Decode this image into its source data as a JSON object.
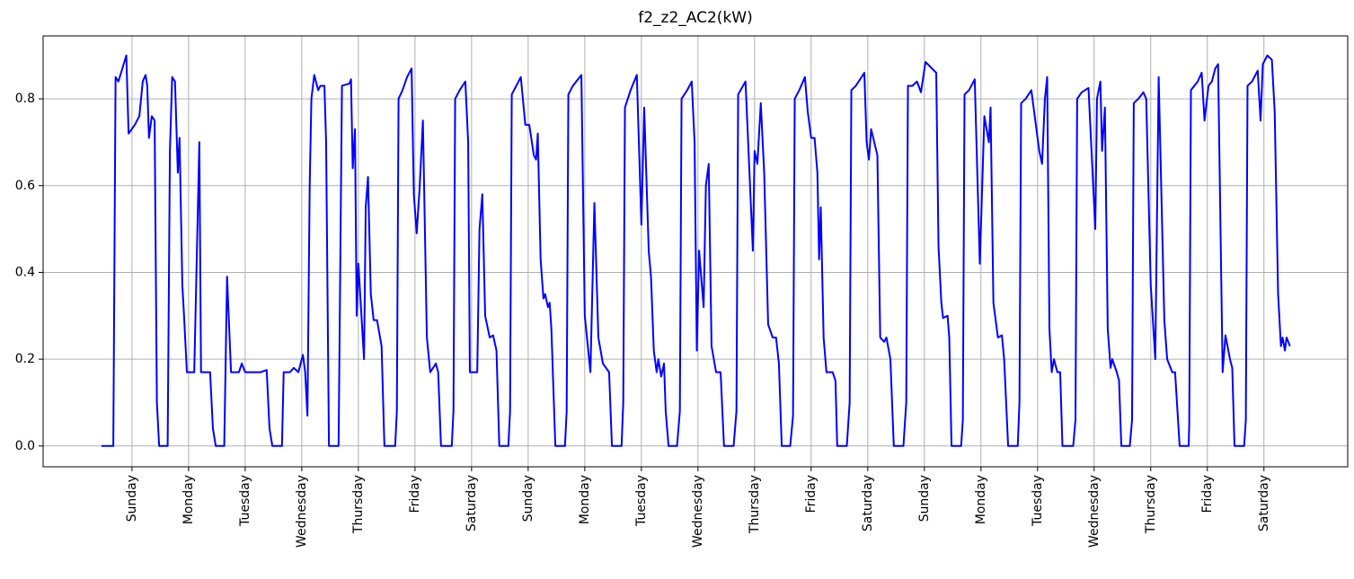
{
  "chart_data": {
    "type": "line",
    "title": "f2_z2_AC2(kW)",
    "color": "#0000ff",
    "grid": true,
    "xlim": [
      -1.57,
      21.48
    ],
    "ylim": [
      -0.048,
      0.945
    ],
    "yticks": [
      {
        "value": 0,
        "label": "0.0"
      },
      0.2,
      0.4,
      0.6,
      0.8
    ],
    "xticks": [
      {
        "value": 0,
        "label": "Sunday"
      },
      {
        "value": 1,
        "label": "Monday"
      },
      {
        "value": 2,
        "label": "Tuesday"
      },
      {
        "value": 3,
        "label": "Wednesday"
      },
      {
        "value": 4,
        "label": "Thursday"
      },
      {
        "value": 5,
        "label": "Friday"
      },
      {
        "value": 6,
        "label": "Saturday"
      },
      {
        "value": 7,
        "label": "Sunday"
      },
      {
        "value": 8,
        "label": "Monday"
      },
      {
        "value": 9,
        "label": "Tuesday"
      },
      {
        "value": 10,
        "label": "Wednesday"
      },
      {
        "value": 11,
        "label": "Thursday"
      },
      {
        "value": 12,
        "label": "Friday"
      },
      {
        "value": 13,
        "label": "Saturday"
      },
      {
        "value": 14,
        "label": "Sunday"
      },
      {
        "value": 15,
        "label": "Monday"
      },
      {
        "value": 16,
        "label": "Tuesday"
      },
      {
        "value": 17,
        "label": "Wednesday"
      },
      {
        "value": 18,
        "label": "Thursday"
      },
      {
        "value": 19,
        "label": "Friday"
      },
      {
        "value": 20,
        "label": "Saturday"
      }
    ],
    "x": [
      -0.54,
      -0.33,
      -0.29,
      -0.24,
      -0.17,
      -0.1,
      -0.06,
      0.05,
      0.13,
      0.19,
      0.24,
      0.27,
      0.3,
      0.35,
      0.4,
      0.44,
      0.48,
      0.63,
      0.67,
      0.71,
      0.76,
      0.81,
      0.84,
      0.89,
      0.92,
      0.97,
      1.1,
      1.19,
      1.22,
      1.38,
      1.43,
      1.48,
      1.63,
      1.68,
      1.75,
      1.89,
      1.94,
      2.0,
      2.27,
      2.38,
      2.43,
      2.48,
      2.65,
      2.68,
      2.79,
      2.86,
      2.94,
      3.02,
      3.06,
      3.1,
      3.14,
      3.17,
      3.22,
      3.29,
      3.33,
      3.4,
      3.43,
      3.48,
      3.65,
      3.71,
      3.84,
      3.87,
      3.9,
      3.94,
      3.97,
      4.0,
      4.1,
      4.13,
      4.17,
      4.22,
      4.27,
      4.33,
      4.41,
      4.46,
      4.65,
      4.68,
      4.71,
      4.78,
      4.86,
      4.94,
      4.98,
      5.03,
      5.08,
      5.14,
      5.21,
      5.27,
      5.37,
      5.41,
      5.46,
      5.65,
      5.68,
      5.71,
      5.79,
      5.89,
      5.94,
      5.97,
      6.1,
      6.14,
      6.19,
      6.24,
      6.32,
      6.38,
      6.44,
      6.49,
      6.65,
      6.68,
      6.71,
      6.79,
      6.87,
      6.95,
      7.02,
      7.1,
      7.14,
      7.17,
      7.22,
      7.27,
      7.3,
      7.35,
      7.38,
      7.41,
      7.48,
      7.65,
      7.68,
      7.71,
      7.79,
      7.94,
      8.0,
      8.1,
      8.17,
      8.24,
      8.32,
      8.43,
      8.48,
      8.65,
      8.68,
      8.71,
      8.81,
      8.92,
      9.0,
      9.05,
      9.13,
      9.17,
      9.22,
      9.27,
      9.3,
      9.35,
      9.4,
      9.43,
      9.48,
      9.63,
      9.68,
      9.71,
      9.81,
      9.89,
      9.94,
      9.98,
      10.02,
      10.1,
      10.14,
      10.19,
      10.24,
      10.32,
      10.4,
      10.46,
      10.63,
      10.68,
      10.71,
      10.84,
      10.97,
      11.0,
      11.05,
      11.11,
      11.17,
      11.24,
      11.32,
      11.38,
      11.43,
      11.48,
      11.63,
      11.68,
      11.71,
      11.79,
      11.89,
      11.94,
      12.0,
      12.06,
      12.11,
      12.14,
      12.17,
      12.22,
      12.27,
      12.38,
      12.43,
      12.46,
      12.63,
      12.68,
      12.71,
      12.79,
      12.94,
      12.98,
      13.02,
      13.06,
      13.17,
      13.22,
      13.29,
      13.33,
      13.4,
      13.46,
      13.63,
      13.68,
      13.71,
      13.79,
      13.87,
      13.94,
      14.02,
      14.21,
      14.25,
      14.3,
      14.33,
      14.41,
      14.44,
      14.48,
      14.65,
      14.68,
      14.71,
      14.79,
      14.89,
      14.98,
      15.06,
      15.14,
      15.17,
      15.22,
      15.3,
      15.37,
      15.41,
      15.48,
      15.65,
      15.68,
      15.71,
      15.79,
      15.89,
      15.95,
      16.03,
      16.08,
      16.13,
      16.17,
      16.21,
      16.25,
      16.29,
      16.35,
      16.4,
      16.44,
      16.63,
      16.67,
      16.7,
      16.78,
      16.9,
      17.02,
      17.05,
      17.11,
      17.14,
      17.19,
      17.24,
      17.29,
      17.32,
      17.4,
      17.44,
      17.48,
      17.63,
      17.67,
      17.7,
      17.78,
      17.87,
      17.92,
      18.0,
      18.08,
      18.14,
      18.24,
      18.29,
      18.38,
      18.43,
      18.51,
      18.67,
      18.68,
      18.71,
      18.83,
      18.9,
      18.95,
      19.02,
      19.08,
      19.14,
      19.19,
      19.27,
      19.32,
      19.4,
      19.44,
      19.48,
      19.65,
      19.68,
      19.71,
      19.79,
      19.89,
      19.94,
      19.98,
      20.06,
      20.14,
      20.19,
      20.25,
      20.3,
      20.33,
      20.37,
      20.4,
      20.46
    ],
    "values": [
      0,
      0,
      0.85,
      0.84,
      0.87,
      0.9,
      0.72,
      0.74,
      0.76,
      0.84,
      0.855,
      0.83,
      0.71,
      0.76,
      0.75,
      0.1,
      0,
      0,
      0.68,
      0.85,
      0.84,
      0.63,
      0.71,
      0.37,
      0.3,
      0.17,
      0.17,
      0.7,
      0.17,
      0.17,
      0.04,
      0,
      0,
      0.39,
      0.17,
      0.17,
      0.19,
      0.17,
      0.17,
      0.175,
      0.04,
      0,
      0,
      0.17,
      0.17,
      0.18,
      0.17,
      0.21,
      0.17,
      0.07,
      0.6,
      0.8,
      0.855,
      0.82,
      0.83,
      0.83,
      0.7,
      0,
      0,
      0.83,
      0.835,
      0.845,
      0.64,
      0.73,
      0.3,
      0.42,
      0.2,
      0.55,
      0.62,
      0.35,
      0.29,
      0.29,
      0.23,
      0,
      0,
      0.08,
      0.8,
      0.82,
      0.85,
      0.87,
      0.58,
      0.49,
      0.59,
      0.75,
      0.25,
      0.17,
      0.19,
      0.17,
      0,
      0,
      0.08,
      0.8,
      0.82,
      0.84,
      0.7,
      0.17,
      0.17,
      0.5,
      0.58,
      0.3,
      0.25,
      0.255,
      0.22,
      0,
      0,
      0.08,
      0.81,
      0.83,
      0.85,
      0.74,
      0.74,
      0.67,
      0.66,
      0.72,
      0.43,
      0.34,
      0.35,
      0.32,
      0.33,
      0.27,
      0,
      0,
      0.08,
      0.81,
      0.83,
      0.855,
      0.3,
      0.17,
      0.56,
      0.25,
      0.19,
      0.17,
      0,
      0,
      0.1,
      0.78,
      0.82,
      0.855,
      0.51,
      0.78,
      0.45,
      0.39,
      0.22,
      0.17,
      0.2,
      0.16,
      0.19,
      0.08,
      0,
      0,
      0.08,
      0.8,
      0.82,
      0.84,
      0.7,
      0.22,
      0.45,
      0.32,
      0.6,
      0.65,
      0.23,
      0.17,
      0.17,
      0,
      0,
      0.08,
      0.81,
      0.84,
      0.45,
      0.68,
      0.65,
      0.79,
      0.63,
      0.28,
      0.25,
      0.25,
      0.19,
      0,
      0,
      0.07,
      0.8,
      0.82,
      0.85,
      0.77,
      0.71,
      0.71,
      0.63,
      0.43,
      0.55,
      0.25,
      0.17,
      0.17,
      0.15,
      0,
      0,
      0.1,
      0.82,
      0.83,
      0.86,
      0.7,
      0.66,
      0.73,
      0.67,
      0.25,
      0.24,
      0.25,
      0.2,
      0,
      0,
      0.1,
      0.83,
      0.83,
      0.84,
      0.815,
      0.885,
      0.86,
      0.46,
      0.33,
      0.295,
      0.3,
      0.25,
      0,
      0,
      0.06,
      0.81,
      0.82,
      0.845,
      0.42,
      0.76,
      0.7,
      0.78,
      0.33,
      0.25,
      0.255,
      0.2,
      0,
      0,
      0.1,
      0.79,
      0.8,
      0.82,
      0.76,
      0.68,
      0.65,
      0.8,
      0.85,
      0.27,
      0.17,
      0.2,
      0.17,
      0.17,
      0,
      0,
      0.06,
      0.8,
      0.815,
      0.825,
      0.5,
      0.8,
      0.84,
      0.68,
      0.78,
      0.27,
      0.18,
      0.2,
      0.17,
      0.15,
      0,
      0,
      0.06,
      0.79,
      0.8,
      0.815,
      0.8,
      0.37,
      0.2,
      0.85,
      0.29,
      0.2,
      0.17,
      0.17,
      0,
      0,
      0.05,
      0.82,
      0.84,
      0.86,
      0.75,
      0.83,
      0.84,
      0.87,
      0.88,
      0.17,
      0.255,
      0.2,
      0.18,
      0,
      0,
      0.06,
      0.83,
      0.84,
      0.865,
      0.75,
      0.88,
      0.9,
      0.89,
      0.77,
      0.35,
      0.23,
      0.25,
      0.22,
      0.25,
      0.23
    ]
  }
}
